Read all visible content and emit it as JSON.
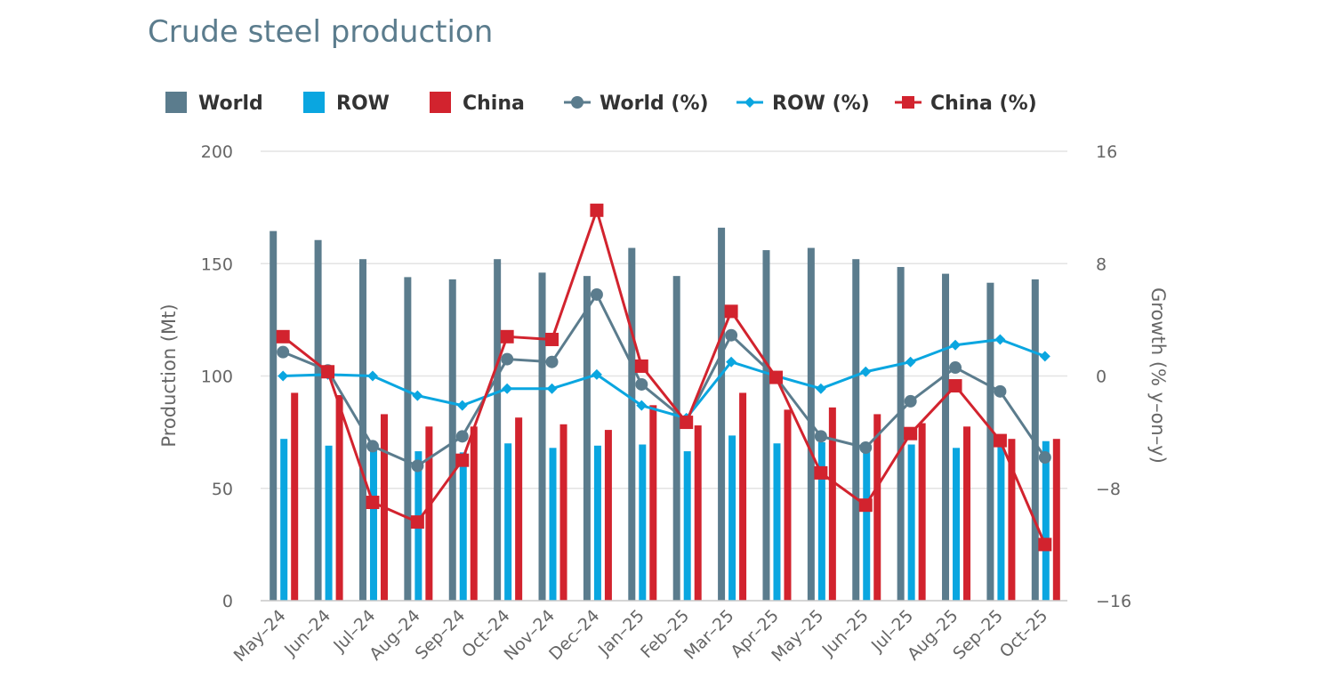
{
  "chart_data": {
    "type": "bar",
    "title": "Crude steel production",
    "categories": [
      "May-24",
      "Jun-24",
      "Jul-24",
      "Aug-24",
      "Sep-24",
      "Oct-24",
      "Nov-24",
      "Dec-24",
      "Jan-25",
      "Feb-25",
      "Mar-25",
      "Apr-25",
      "May-25",
      "Jun-25",
      "Jul-25",
      "Aug-25",
      "Sep-25",
      "Oct-25"
    ],
    "ylabel": "Production (Mt)",
    "ylim": [
      0,
      200
    ],
    "yticks": [
      "0",
      "50",
      "100",
      "150",
      "200"
    ],
    "y2label": "Growth (% y-on-y)",
    "y2lim": [
      -16,
      16
    ],
    "y2ticks": [
      "-16",
      "-8",
      "0",
      "8",
      "16"
    ],
    "grid": true,
    "legend_position": "top",
    "colors": {
      "world": "#5b7c8d",
      "row": "#0aa6e0",
      "china": "#d2232e"
    },
    "bar_series": [
      {
        "name": "World",
        "key": "world",
        "values": [
          164.5,
          160.5,
          152,
          144,
          143,
          152,
          146,
          144.5,
          157,
          144.5,
          166,
          156,
          157,
          152,
          148.5,
          145.5,
          141.5,
          143
        ]
      },
      {
        "name": "ROW",
        "key": "row",
        "values": [
          72,
          69,
          69,
          66.5,
          66,
          70,
          68,
          69,
          69.5,
          66.5,
          73.5,
          70,
          70.5,
          70,
          69.5,
          68,
          69.5,
          71
        ]
      },
      {
        "name": "China",
        "key": "china",
        "values": [
          92.5,
          91.5,
          83,
          77.5,
          77.5,
          81.5,
          78.5,
          76,
          87,
          78,
          92.5,
          85,
          86,
          83,
          79,
          77.5,
          72,
          72
        ]
      }
    ],
    "line_series": [
      {
        "name": "World (%)",
        "key": "world",
        "marker": "circle",
        "values": [
          1.7,
          0.4,
          -5.0,
          -6.4,
          -4.3,
          1.2,
          1.0,
          5.8,
          -0.6,
          -3.2,
          2.9,
          -0.1,
          -4.3,
          -5.1,
          -1.8,
          0.6,
          -1.1,
          -5.8
        ]
      },
      {
        "name": "ROW (%)",
        "key": "row",
        "marker": "diamond",
        "values": [
          0.0,
          0.1,
          0.0,
          -1.4,
          -2.1,
          -0.9,
          -0.9,
          0.1,
          -2.1,
          -3.0,
          1.0,
          0.0,
          -0.9,
          0.3,
          1.0,
          2.2,
          2.6,
          1.4
        ]
      },
      {
        "name": "China (%)",
        "key": "china",
        "marker": "square",
        "values": [
          2.8,
          0.3,
          -9.0,
          -10.4,
          -6.0,
          2.8,
          2.6,
          11.8,
          0.7,
          -3.3,
          4.6,
          -0.1,
          -6.9,
          -9.2,
          -4.1,
          -0.7,
          -4.6,
          -12.0
        ]
      }
    ]
  }
}
